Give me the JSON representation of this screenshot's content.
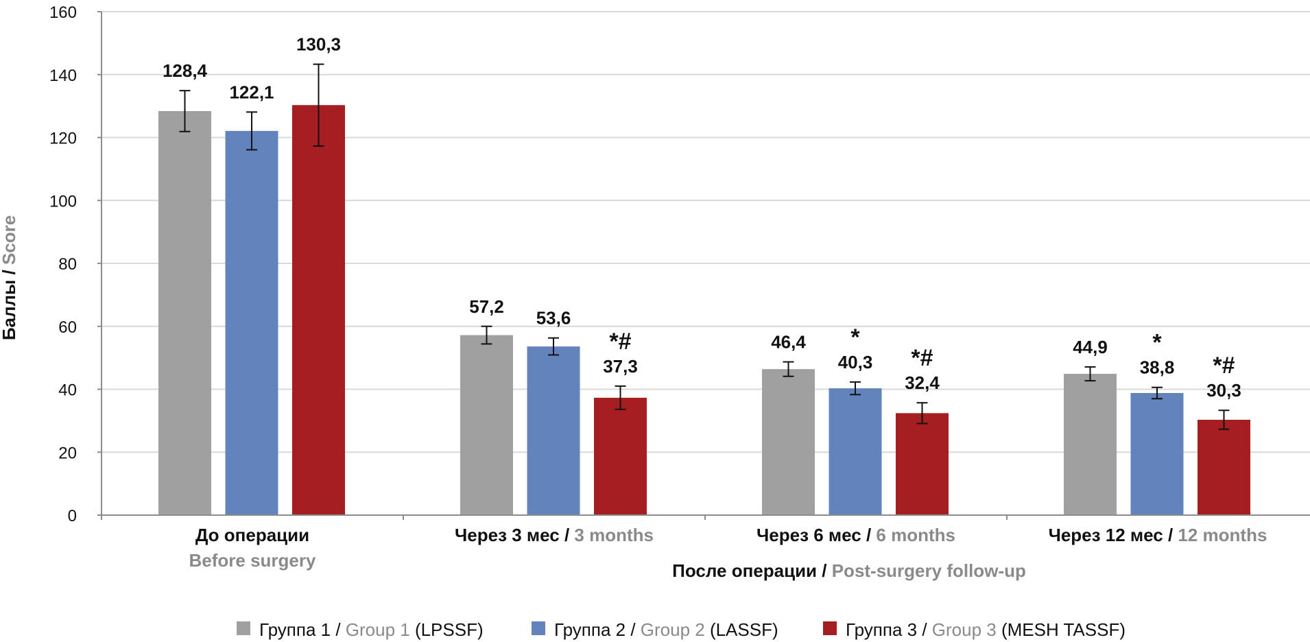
{
  "chart_data": {
    "type": "bar",
    "ylabel": {
      "ru": "Баллы",
      "sep": " / ",
      "en": "Score"
    },
    "xlabel": {
      "ru": "После операции",
      "sep": " / ",
      "en": "Post-surgery follow-up"
    },
    "ylim": [
      0,
      160
    ],
    "yticks": [
      0,
      20,
      40,
      60,
      80,
      100,
      120,
      140,
      160
    ],
    "grid": true,
    "legend_position": "bottom",
    "categories": [
      {
        "ru": "До операции",
        "en": "Before surgery",
        "layout": "stacked"
      },
      {
        "ru": "Через 3 мес",
        "sep": " / ",
        "en": "3 months",
        "layout": "inline"
      },
      {
        "ru": "Через 6 мес",
        "sep": " / ",
        "en": "6 months",
        "layout": "inline"
      },
      {
        "ru": "Через 12 мес",
        "sep": " / ",
        "en": "12 months",
        "layout": "inline"
      }
    ],
    "series": [
      {
        "name": {
          "ru": "Группа 1",
          "sep": " / ",
          "en": "Group 1",
          "abbr": " (LPSSF)"
        },
        "color": "#a0a0a0",
        "values": [
          128.4,
          57.2,
          46.4,
          44.9
        ],
        "labels": [
          "128,4",
          "57,2",
          "46,4",
          "44,9"
        ],
        "error": [
          6.5,
          2.8,
          2.3,
          2.2
        ],
        "marks": [
          "",
          "",
          "",
          ""
        ]
      },
      {
        "name": {
          "ru": "Группа 2",
          "sep": " / ",
          "en": "Group 2",
          "abbr": " (LASSF)"
        },
        "color": "#6383bd",
        "values": [
          122.1,
          53.6,
          40.3,
          38.8
        ],
        "labels": [
          "122,1",
          "53,6",
          "40,3",
          "38,8"
        ],
        "error": [
          6.0,
          2.7,
          2.0,
          1.8
        ],
        "marks": [
          "",
          "",
          "*",
          "*"
        ]
      },
      {
        "name": {
          "ru": "Группа 3",
          "sep": " / ",
          "en": "Group 3",
          "abbr": " (MESH TASSF)"
        },
        "color": "#a51e22",
        "values": [
          130.3,
          37.3,
          32.4,
          30.3
        ],
        "labels": [
          "130,3",
          "37,3",
          "32,4",
          "30,3"
        ],
        "error": [
          13.0,
          3.7,
          3.3,
          3.0
        ],
        "marks": [
          "",
          "*#",
          "*#",
          "*#"
        ]
      }
    ]
  }
}
